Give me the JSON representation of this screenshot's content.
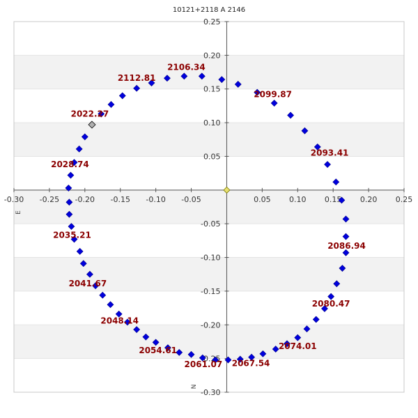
{
  "chart_data": {
    "type": "scatter",
    "title": "10121+2118 A  2146",
    "xlabel": "E",
    "ylabel": "N",
    "xlim": [
      -0.3,
      0.25
    ],
    "ylim": [
      -0.3,
      0.25
    ],
    "x_ticks": [
      "-0.30",
      "-0.25",
      "-0.20",
      "-0.15",
      "-0.10",
      "-0.05",
      "0.05",
      "0.10",
      "0.15",
      "0.20",
      "0.25"
    ],
    "y_ticks": [
      "0.25",
      "0.20",
      "0.15",
      "0.10",
      "0.05",
      "-0.05",
      "-0.10",
      "-0.15",
      "-0.20",
      "-0.25",
      "-0.30"
    ],
    "grid": "alternating horizontal bands",
    "colors": {
      "point": "#0000dd",
      "highlight": "#b0b0b0",
      "origin": "#e8e070",
      "label": "#8b0000",
      "band": "#f2f2f2"
    },
    "origin_marker": {
      "x": 0.0,
      "y": 0.0
    },
    "highlight_point": {
      "x": -0.19,
      "y": 0.097
    },
    "points": [
      {
        "x": 0.016,
        "y": 0.157
      },
      {
        "x": 0.043,
        "y": 0.145
      },
      {
        "x": 0.067,
        "y": 0.129
      },
      {
        "x": 0.09,
        "y": 0.111
      },
      {
        "x": 0.11,
        "y": 0.088
      },
      {
        "x": 0.128,
        "y": 0.064
      },
      {
        "x": 0.142,
        "y": 0.038
      },
      {
        "x": 0.154,
        "y": 0.012
      },
      {
        "x": 0.162,
        "y": -0.015
      },
      {
        "x": 0.168,
        "y": -0.043
      },
      {
        "x": 0.168,
        "y": -0.069
      },
      {
        "x": 0.168,
        "y": -0.093
      },
      {
        "x": 0.163,
        "y": -0.116
      },
      {
        "x": 0.155,
        "y": -0.139
      },
      {
        "x": 0.147,
        "y": -0.158
      },
      {
        "x": 0.138,
        "y": -0.176
      },
      {
        "x": 0.126,
        "y": -0.192
      },
      {
        "x": 0.113,
        "y": -0.206
      },
      {
        "x": 0.1,
        "y": -0.219
      },
      {
        "x": 0.085,
        "y": -0.228
      },
      {
        "x": 0.069,
        "y": -0.236
      },
      {
        "x": 0.051,
        "y": -0.243
      },
      {
        "x": 0.035,
        "y": -0.248
      },
      {
        "x": 0.019,
        "y": -0.251
      },
      {
        "x": 0.002,
        "y": -0.252
      },
      {
        "x": -0.016,
        "y": -0.252
      },
      {
        "x": -0.034,
        "y": -0.249
      },
      {
        "x": -0.05,
        "y": -0.244
      },
      {
        "x": -0.067,
        "y": -0.241
      },
      {
        "x": -0.083,
        "y": -0.234
      },
      {
        "x": -0.1,
        "y": -0.226
      },
      {
        "x": -0.114,
        "y": -0.218
      },
      {
        "x": -0.127,
        "y": -0.207
      },
      {
        "x": -0.14,
        "y": -0.196
      },
      {
        "x": -0.152,
        "y": -0.184
      },
      {
        "x": -0.164,
        "y": -0.17
      },
      {
        "x": -0.175,
        "y": -0.156
      },
      {
        "x": -0.185,
        "y": -0.142
      },
      {
        "x": -0.193,
        "y": -0.125
      },
      {
        "x": -0.202,
        "y": -0.109
      },
      {
        "x": -0.207,
        "y": -0.091
      },
      {
        "x": -0.215,
        "y": -0.073
      },
      {
        "x": -0.219,
        "y": -0.054
      },
      {
        "x": -0.222,
        "y": -0.036
      },
      {
        "x": -0.222,
        "y": -0.018
      },
      {
        "x": -0.223,
        "y": 0.003
      },
      {
        "x": -0.22,
        "y": 0.022
      },
      {
        "x": -0.215,
        "y": 0.041
      },
      {
        "x": -0.208,
        "y": 0.061
      },
      {
        "x": -0.2,
        "y": 0.079
      },
      {
        "x": -0.177,
        "y": 0.113
      },
      {
        "x": -0.163,
        "y": 0.127
      },
      {
        "x": -0.147,
        "y": 0.14
      },
      {
        "x": -0.127,
        "y": 0.151
      },
      {
        "x": -0.106,
        "y": 0.159
      },
      {
        "x": -0.084,
        "y": 0.166
      },
      {
        "x": -0.06,
        "y": 0.169
      },
      {
        "x": -0.035,
        "y": 0.169
      },
      {
        "x": -0.007,
        "y": 0.164
      }
    ],
    "annotations": [
      {
        "text": "2106.34",
        "x": -0.057,
        "y": 0.178
      },
      {
        "text": "2112.81",
        "x": -0.127,
        "y": 0.162
      },
      {
        "text": "2099.87",
        "x": 0.065,
        "y": 0.138
      },
      {
        "text": "2022.27",
        "x": -0.193,
        "y": 0.109
      },
      {
        "text": "2093.41",
        "x": 0.145,
        "y": 0.051
      },
      {
        "text": "2028.74",
        "x": -0.221,
        "y": 0.034
      },
      {
        "text": "2035.21",
        "x": -0.218,
        "y": -0.071
      },
      {
        "text": "2086.94",
        "x": 0.169,
        "y": -0.087
      },
      {
        "text": "2041.67",
        "x": -0.196,
        "y": -0.143
      },
      {
        "text": "2080.47",
        "x": 0.147,
        "y": -0.173
      },
      {
        "text": "2048.14",
        "x": -0.151,
        "y": -0.198
      },
      {
        "text": "2074.01",
        "x": 0.1,
        "y": -0.236
      },
      {
        "text": "2054.61",
        "x": -0.097,
        "y": -0.242
      },
      {
        "text": "2061.07",
        "x": -0.033,
        "y": -0.263
      },
      {
        "text": "2067.54",
        "x": 0.034,
        "y": -0.261
      }
    ]
  }
}
